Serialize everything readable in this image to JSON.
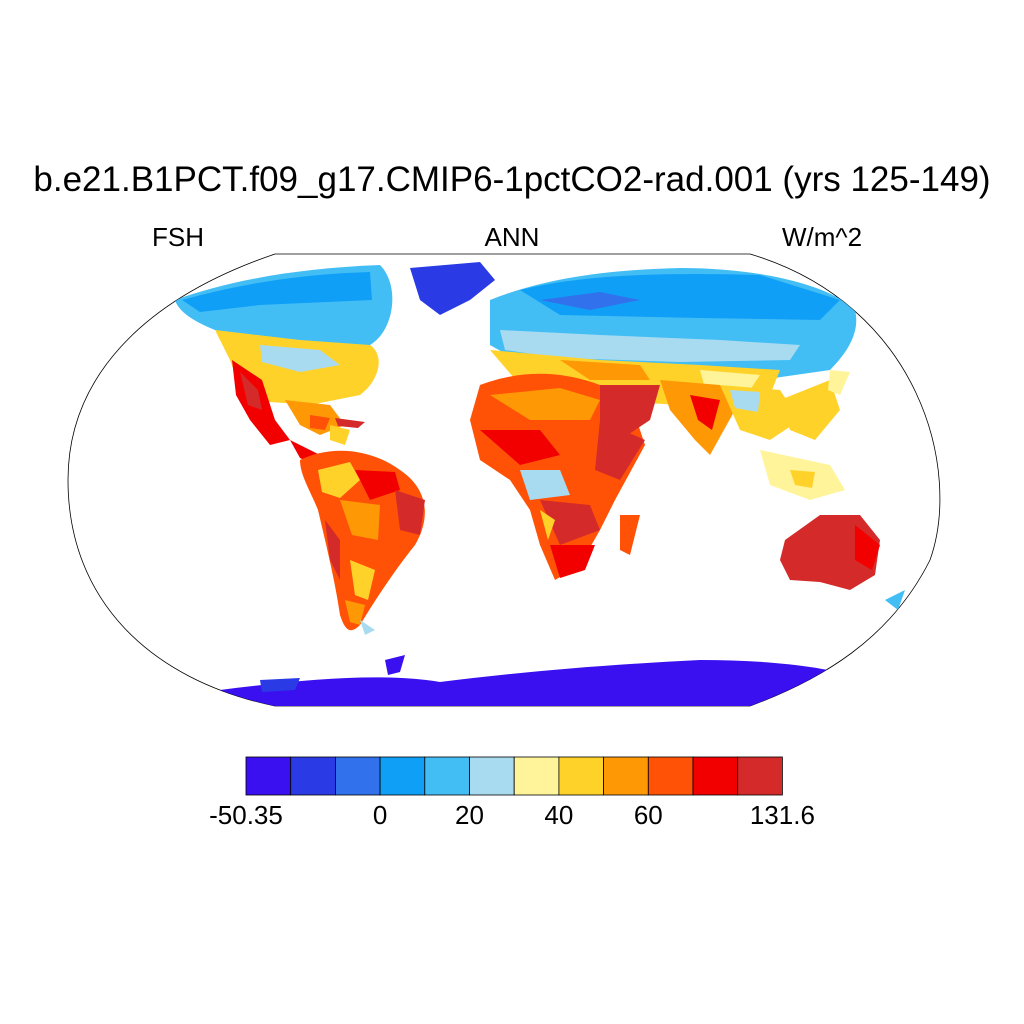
{
  "title": "b.e21.B1PCT.f09_g17.CMIP6-1pctCO2-rad.001 (yrs 125-149)",
  "subtitle_left": "FSH",
  "subtitle_center": "ANN",
  "subtitle_right": "W/m^2",
  "colorbar": {
    "colors": [
      "#3a0ff0",
      "#2a3be6",
      "#3172ec",
      "#109ff6",
      "#43bef5",
      "#a9dbf0",
      "#fff49a",
      "#ffd22a",
      "#ff9805",
      "#ff5206",
      "#f20000",
      "#d52a2a"
    ],
    "labels": [
      {
        "text": "-50.35",
        "boundary": 0
      },
      {
        "text": "0",
        "boundary": 3
      },
      {
        "text": "20",
        "boundary": 5
      },
      {
        "text": "40",
        "boundary": 7
      },
      {
        "text": "60",
        "boundary": 9
      },
      {
        "text": "131.6",
        "boundary": 12
      }
    ]
  }
}
